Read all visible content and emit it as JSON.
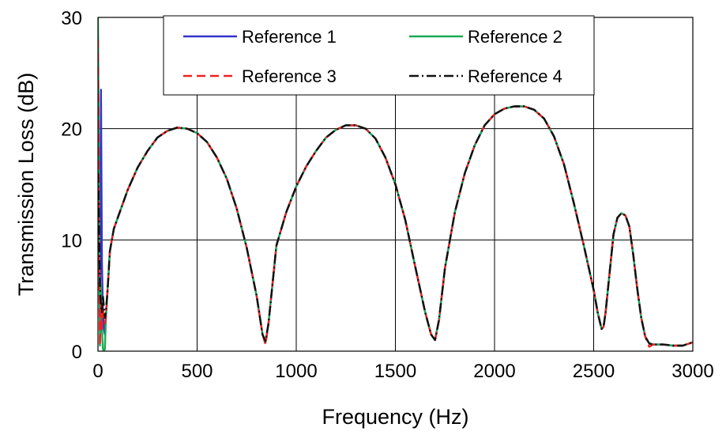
{
  "chart_data": {
    "type": "line",
    "title": "",
    "xlabel": "Frequency (Hz)",
    "ylabel": "Transmission Loss (dB)",
    "xlim": [
      0,
      3000
    ],
    "ylim": [
      0,
      30
    ],
    "x_ticks": [
      0,
      500,
      1000,
      1500,
      2000,
      2500,
      3000
    ],
    "y_ticks": [
      0,
      10,
      20,
      30
    ],
    "x_tick_labels": [
      "0",
      "500",
      "1000",
      "1500",
      "2000",
      "2500",
      "3000"
    ],
    "y_tick_labels": [
      "0",
      "10",
      "20",
      "30"
    ],
    "grid": true,
    "legend_position": "top",
    "series": [
      {
        "name": "Reference 1",
        "color": "#3333cc",
        "dash": "solid",
        "x": [
          0,
          5,
          10,
          15,
          20,
          25,
          30,
          35,
          40,
          50,
          60,
          80,
          100,
          150,
          200,
          250,
          300,
          350,
          400,
          450,
          500,
          550,
          600,
          650,
          700,
          750,
          800,
          830,
          845,
          860,
          880,
          900,
          950,
          1000,
          1050,
          1100,
          1150,
          1200,
          1250,
          1300,
          1350,
          1400,
          1450,
          1500,
          1550,
          1600,
          1650,
          1680,
          1700,
          1720,
          1750,
          1800,
          1850,
          1900,
          1950,
          2000,
          2050,
          2100,
          2150,
          2200,
          2250,
          2300,
          2350,
          2400,
          2450,
          2500,
          2520,
          2540,
          2550,
          2560,
          2580,
          2600,
          2620,
          2640,
          2660,
          2680,
          2700,
          2720,
          2740,
          2760,
          2780,
          2800,
          2850,
          2900,
          2950,
          3000
        ],
        "y": [
          27,
          14,
          2,
          23.5,
          8,
          3.5,
          2,
          1.5,
          3,
          6,
          9,
          11,
          12,
          14.5,
          16.5,
          18,
          19.2,
          19.8,
          20.1,
          20,
          19.6,
          18.8,
          17.4,
          15.5,
          12.8,
          9.3,
          5,
          1.5,
          0.8,
          2.5,
          6,
          9.5,
          12.5,
          14.8,
          16.6,
          18,
          19.2,
          19.9,
          20.3,
          20.3,
          20,
          19.1,
          17.4,
          15,
          11.8,
          7.6,
          3.5,
          1.5,
          1,
          2.8,
          7.5,
          12.5,
          16,
          18.5,
          20.3,
          21.3,
          21.8,
          22,
          22,
          21.7,
          20.9,
          19.3,
          16.8,
          13.3,
          9.5,
          5.5,
          3.5,
          2,
          2.2,
          3.5,
          7,
          10.5,
          12,
          12.4,
          12.2,
          11.2,
          8.6,
          5.6,
          3,
          1.3,
          0.7,
          0.6,
          0.6,
          0.5,
          0.5,
          0.8
        ]
      },
      {
        "name": "Reference 2",
        "color": "#1aaa55",
        "dash": "solid",
        "x": [
          0,
          5,
          10,
          15,
          20,
          25,
          30,
          35,
          40,
          50,
          60,
          80,
          100,
          150,
          200,
          250,
          300,
          350,
          400,
          450,
          500,
          550,
          600,
          650,
          700,
          750,
          800,
          830,
          845,
          860,
          880,
          900,
          950,
          1000,
          1050,
          1100,
          1150,
          1200,
          1250,
          1300,
          1350,
          1400,
          1450,
          1500,
          1550,
          1600,
          1650,
          1680,
          1700,
          1720,
          1750,
          1800,
          1850,
          1900,
          1950,
          2000,
          2050,
          2100,
          2150,
          2200,
          2250,
          2300,
          2350,
          2400,
          2450,
          2500,
          2520,
          2540,
          2550,
          2560,
          2580,
          2600,
          2620,
          2640,
          2660,
          2680,
          2700,
          2720,
          2740,
          2760,
          2780,
          2800,
          2850,
          2900,
          2950,
          3000
        ],
        "y": [
          30,
          16,
          0.5,
          6,
          2,
          0.2,
          0,
          0.2,
          3,
          6,
          9,
          11,
          12,
          14.5,
          16.5,
          18,
          19.2,
          19.8,
          20.1,
          20,
          19.6,
          18.8,
          17.4,
          15.5,
          12.8,
          9.3,
          5,
          1.5,
          0.8,
          2.5,
          6,
          9.5,
          12.5,
          14.8,
          16.6,
          18,
          19.2,
          19.9,
          20.3,
          20.3,
          20,
          19.1,
          17.4,
          15,
          11.8,
          7.6,
          3.5,
          1.5,
          1,
          2.8,
          7.5,
          12.5,
          16,
          18.5,
          20.3,
          21.3,
          21.8,
          22,
          22,
          21.7,
          20.9,
          19.3,
          16.8,
          13.3,
          9.5,
          5.5,
          3.5,
          2,
          2.2,
          3.5,
          7,
          10.5,
          12,
          12.4,
          12.2,
          11.2,
          8.6,
          5.6,
          3,
          1.3,
          0.7,
          0.6,
          0.6,
          0.5,
          0.5,
          0.8
        ]
      },
      {
        "name": "Reference 3",
        "color": "#ee2222",
        "dash": "dashed",
        "x": [
          0,
          5,
          10,
          15,
          20,
          25,
          30,
          35,
          40,
          50,
          60,
          80,
          100,
          150,
          200,
          250,
          300,
          350,
          400,
          450,
          500,
          550,
          600,
          650,
          700,
          750,
          800,
          830,
          845,
          860,
          880,
          900,
          950,
          1000,
          1050,
          1100,
          1150,
          1200,
          1250,
          1300,
          1350,
          1400,
          1450,
          1500,
          1550,
          1600,
          1650,
          1680,
          1700,
          1720,
          1750,
          1800,
          1850,
          1900,
          1950,
          2000,
          2050,
          2100,
          2150,
          2200,
          2250,
          2300,
          2350,
          2400,
          2450,
          2500,
          2520,
          2540,
          2550,
          2560,
          2580,
          2600,
          2620,
          2640,
          2660,
          2680,
          2700,
          2720,
          2740,
          2760,
          2780,
          2800,
          2850,
          2900,
          2950,
          3000
        ],
        "y": [
          28,
          10,
          0.5,
          4.5,
          2,
          4,
          3,
          2.5,
          3,
          6,
          9,
          11,
          12,
          14.5,
          16.5,
          18,
          19.2,
          19.8,
          20.1,
          20,
          19.6,
          18.8,
          17.4,
          15.5,
          12.8,
          9.3,
          5,
          1.5,
          0.6,
          2.5,
          6,
          9.5,
          12.5,
          14.8,
          16.6,
          18,
          19.2,
          19.9,
          20.3,
          20.3,
          20,
          19.1,
          17.4,
          15,
          11.8,
          7.6,
          3.5,
          1.5,
          1,
          2.8,
          7.5,
          12.5,
          16,
          18.5,
          20.3,
          21.3,
          21.8,
          22,
          22,
          21.7,
          20.9,
          19.3,
          16.8,
          13.3,
          9.5,
          5.5,
          3.5,
          2,
          2.2,
          3.5,
          7,
          10.5,
          12,
          12.4,
          12.2,
          11.2,
          8.6,
          5.6,
          3,
          1.3,
          0.4,
          0.6,
          0.6,
          0.5,
          0.5,
          0.8
        ]
      },
      {
        "name": "Reference 4",
        "color": "#111111",
        "dash": "dashdot",
        "x": [
          0,
          5,
          10,
          15,
          20,
          25,
          30,
          35,
          40,
          50,
          60,
          80,
          100,
          150,
          200,
          250,
          300,
          350,
          400,
          450,
          500,
          550,
          600,
          650,
          700,
          750,
          800,
          830,
          845,
          860,
          880,
          900,
          950,
          1000,
          1050,
          1100,
          1150,
          1200,
          1250,
          1300,
          1350,
          1400,
          1450,
          1500,
          1550,
          1600,
          1650,
          1680,
          1700,
          1720,
          1750,
          1800,
          1850,
          1900,
          1950,
          2000,
          2050,
          2100,
          2150,
          2200,
          2250,
          2300,
          2350,
          2400,
          2450,
          2500,
          2520,
          2540,
          2550,
          2560,
          2580,
          2600,
          2620,
          2640,
          2660,
          2680,
          2700,
          2720,
          2740,
          2760,
          2780,
          2800,
          2850,
          2900,
          2950,
          3000
        ],
        "y": [
          16,
          12,
          6,
          4,
          3.5,
          5,
          4,
          3,
          3.5,
          6,
          9,
          11,
          12,
          14.5,
          16.5,
          18,
          19.2,
          19.8,
          20.1,
          20,
          19.6,
          18.8,
          17.4,
          15.5,
          12.8,
          9.3,
          5,
          1.5,
          0.9,
          2.5,
          6,
          9.5,
          12.5,
          14.8,
          16.6,
          18,
          19.2,
          19.9,
          20.3,
          20.3,
          20,
          19.1,
          17.4,
          15,
          11.8,
          7.6,
          3.5,
          1.5,
          1,
          2.8,
          7.5,
          12.5,
          16,
          18.5,
          20.3,
          21.3,
          21.8,
          22,
          22,
          21.7,
          20.9,
          19.3,
          16.8,
          13.3,
          9.5,
          5.5,
          3.5,
          2,
          2.2,
          3.5,
          7,
          10.5,
          12,
          12.4,
          12.2,
          11.2,
          8.6,
          5.6,
          3,
          1.3,
          0.7,
          0.6,
          0.6,
          0.5,
          0.5,
          0.8
        ]
      }
    ]
  }
}
